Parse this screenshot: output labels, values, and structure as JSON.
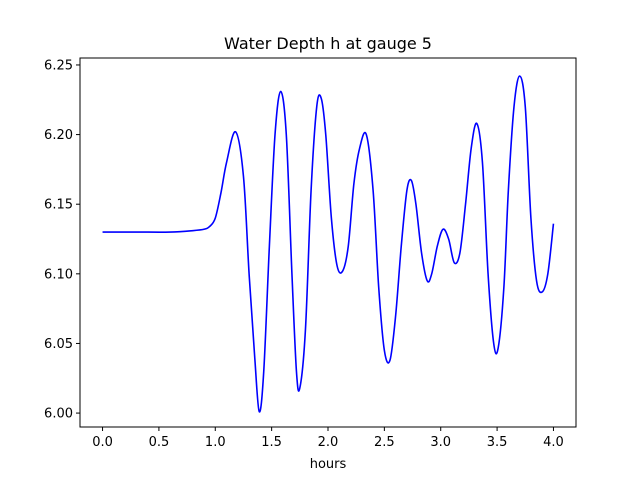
{
  "chart_data": {
    "type": "line",
    "title": "Water Depth h at gauge 5",
    "xlabel": "hours",
    "ylabel": "",
    "xlim": [
      -0.2,
      4.2
    ],
    "ylim": [
      5.99,
      6.255
    ],
    "xticks": [
      0.0,
      0.5,
      1.0,
      1.5,
      2.0,
      2.5,
      3.0,
      3.5,
      4.0
    ],
    "xtick_labels": [
      "0.0",
      "0.5",
      "1.0",
      "1.5",
      "2.0",
      "2.5",
      "3.0",
      "3.5",
      "4.0"
    ],
    "yticks": [
      6.0,
      6.05,
      6.1,
      6.15,
      6.2,
      6.25
    ],
    "ytick_labels": [
      "6.00",
      "6.05",
      "6.10",
      "6.15",
      "6.20",
      "6.25"
    ],
    "grid": false,
    "series": [
      {
        "color": "#0000ff",
        "x": [
          0.0,
          0.3,
          0.6,
          0.8,
          0.9,
          0.95,
          1.0,
          1.05,
          1.1,
          1.18,
          1.25,
          1.3,
          1.35,
          1.39,
          1.43,
          1.48,
          1.53,
          1.58,
          1.63,
          1.68,
          1.72,
          1.75,
          1.8,
          1.85,
          1.9,
          1.94,
          1.98,
          2.03,
          2.08,
          2.13,
          2.18,
          2.23,
          2.28,
          2.34,
          2.4,
          2.45,
          2.5,
          2.55,
          2.6,
          2.65,
          2.7,
          2.74,
          2.78,
          2.83,
          2.88,
          2.92,
          2.97,
          3.02,
          3.07,
          3.12,
          3.17,
          3.22,
          3.27,
          3.32,
          3.37,
          3.42,
          3.47,
          3.51,
          3.56,
          3.6,
          3.65,
          3.7,
          3.75,
          3.8,
          3.85,
          3.9,
          3.95,
          4.0
        ],
        "y": [
          6.13,
          6.13,
          6.13,
          6.131,
          6.132,
          6.134,
          6.14,
          6.158,
          6.18,
          6.202,
          6.17,
          6.1,
          6.04,
          6.001,
          6.03,
          6.12,
          6.2,
          6.231,
          6.2,
          6.1,
          6.03,
          6.018,
          6.06,
          6.16,
          6.22,
          6.226,
          6.2,
          6.14,
          6.106,
          6.102,
          6.12,
          6.165,
          6.19,
          6.2,
          6.16,
          6.09,
          6.045,
          6.038,
          6.07,
          6.12,
          6.16,
          6.167,
          6.15,
          6.115,
          6.095,
          6.1,
          6.12,
          6.132,
          6.125,
          6.108,
          6.115,
          6.15,
          6.19,
          6.208,
          6.18,
          6.1,
          6.05,
          6.047,
          6.09,
          6.16,
          6.22,
          6.242,
          6.22,
          6.14,
          6.095,
          6.087,
          6.1,
          6.136
        ]
      }
    ]
  }
}
